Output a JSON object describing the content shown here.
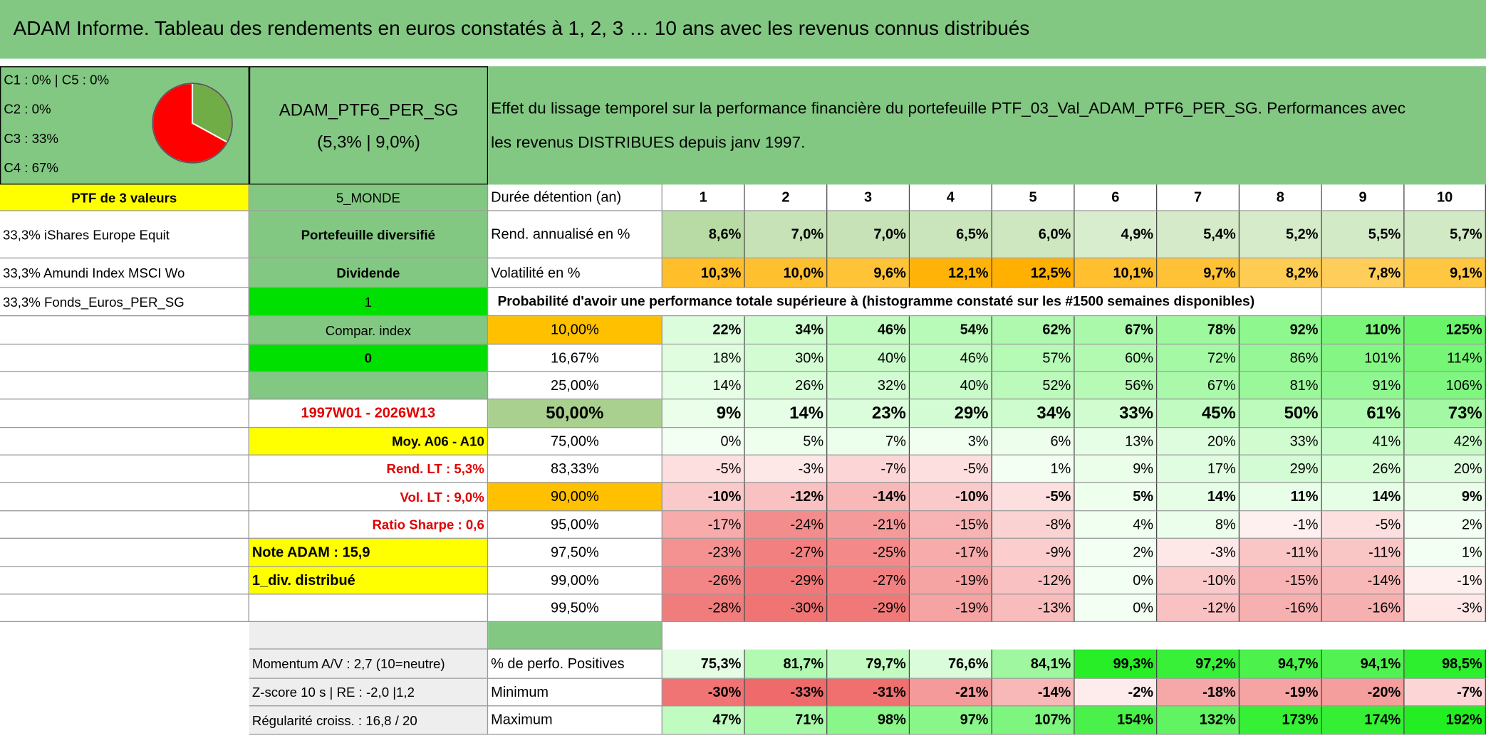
{
  "title": "ADAM Informe. Tableau des rendements en euros constatés à 1, 2, 3 … 10 ans avec les revenus connus distribués",
  "pie": {
    "legend": [
      "C1 : 0% | C5 : 0%",
      "C2 : 0%",
      "C3 : 33%",
      "C4 : 67%"
    ],
    "slices": [
      {
        "value": 33,
        "color": "#70ad47"
      },
      {
        "value": 67,
        "color": "#ff0000"
      }
    ]
  },
  "portfolio": {
    "name": "ADAM_PTF6_PER_SG",
    "stats": "(5,3% | 9,0%)"
  },
  "description": [
    "Effet du lissage temporel sur la performance financière du portefeuille PTF_03_Val_ADAM_PTF6_PER_SG. Performances avec",
    "les revenus DISTRIBUES depuis janv 1997."
  ],
  "table": {
    "rows": [
      {
        "left": "PTF de 3 valeurs",
        "middle": "5_MONDE",
        "label": "Durée détention (an)",
        "values": [
          "1",
          "2",
          "3",
          "4",
          "5",
          "6",
          "7",
          "8",
          "9",
          "10"
        ]
      },
      {
        "left": "33,3% iShares Europe Equit",
        "middle": "Portefeuille diversifié",
        "label": "Rend. annualisé en %",
        "values": [
          "8,6%",
          "7,0%",
          "7,0%",
          "6,5%",
          "6,0%",
          "4,9%",
          "5,4%",
          "5,2%",
          "5,5%",
          "5,7%"
        ]
      },
      {
        "left": "33,3% Amundi Index MSCI Wo",
        "middle": "Dividende",
        "label": "Volatilité en %",
        "values": [
          "10,3%",
          "10,0%",
          "9,6%",
          "12,1%",
          "12,5%",
          "10,1%",
          "9,7%",
          "8,2%",
          "7,8%",
          "9,1%"
        ]
      },
      {
        "left": "33,3% Fonds_Euros_PER_SG",
        "middle": "1",
        "label": "Probabilité d'avoir une performance totale supérieure à (histogramme constaté sur les #1500 semaines disponibles)"
      },
      {
        "middle": "Compar. index",
        "label": "10,00%",
        "values": [
          "22%",
          "34%",
          "46%",
          "54%",
          "62%",
          "67%",
          "78%",
          "92%",
          "110%",
          "125%"
        ]
      },
      {
        "middle": "0",
        "label": "16,67%",
        "values": [
          "18%",
          "30%",
          "40%",
          "46%",
          "57%",
          "60%",
          "72%",
          "86%",
          "101%",
          "114%"
        ]
      },
      {
        "label": "25,00%",
        "values": [
          "14%",
          "26%",
          "32%",
          "40%",
          "52%",
          "56%",
          "67%",
          "81%",
          "91%",
          "106%"
        ]
      },
      {
        "middle": "1997W01 - 2026W13",
        "label": "50,00%",
        "values": [
          "9%",
          "14%",
          "23%",
          "29%",
          "34%",
          "33%",
          "45%",
          "50%",
          "61%",
          "73%"
        ]
      },
      {
        "middle": "Moy. A06 - A10",
        "label": "75,00%",
        "values": [
          "0%",
          "5%",
          "7%",
          "3%",
          "6%",
          "13%",
          "20%",
          "33%",
          "41%",
          "42%"
        ]
      },
      {
        "middle": "Rend. LT : 5,3%",
        "label": "83,33%",
        "values": [
          "-5%",
          "-3%",
          "-7%",
          "-5%",
          "1%",
          "9%",
          "17%",
          "29%",
          "26%",
          "20%"
        ]
      },
      {
        "middle": "Vol. LT : 9,0%",
        "label": "90,00%",
        "values": [
          "-10%",
          "-12%",
          "-14%",
          "-10%",
          "-5%",
          "5%",
          "14%",
          "11%",
          "14%",
          "9%"
        ]
      },
      {
        "middle": "Ratio Sharpe : 0,6",
        "label": "95,00%",
        "values": [
          "-17%",
          "-24%",
          "-21%",
          "-15%",
          "-8%",
          "4%",
          "8%",
          "-1%",
          "-5%",
          "2%"
        ]
      },
      {
        "middle": "Note ADAM : 15,9",
        "label": "97,50%",
        "values": [
          "-23%",
          "-27%",
          "-25%",
          "-17%",
          "-9%",
          "2%",
          "-3%",
          "-11%",
          "-11%",
          "1%"
        ]
      },
      {
        "middle": "1_div. distribué",
        "label": "99,00%",
        "values": [
          "-26%",
          "-29%",
          "-27%",
          "-19%",
          "-12%",
          "0%",
          "-10%",
          "-15%",
          "-14%",
          "-1%"
        ]
      },
      {
        "label": "99,50%",
        "values": [
          "-28%",
          "-30%",
          "-29%",
          "-19%",
          "-13%",
          "0%",
          "-12%",
          "-16%",
          "-16%",
          "-3%"
        ]
      },
      {
        "middle": "Momentum A/V : 2,7 (10=neutre)",
        "label": "% de perfo. Positives",
        "values": [
          "75,3%",
          "81,7%",
          "79,7%",
          "76,6%",
          "84,1%",
          "99,3%",
          "97,2%",
          "94,7%",
          "94,1%",
          "98,5%"
        ]
      },
      {
        "middle": "Z-score 10 s | RE : -2,0 |1,2",
        "label": "Minimum",
        "values": [
          "-30%",
          "-33%",
          "-31%",
          "-21%",
          "-14%",
          "-2%",
          "-18%",
          "-19%",
          "-20%",
          "-7%"
        ]
      },
      {
        "middle": "Régularité croiss. : 16,8 / 20",
        "label": "Maximum",
        "values": [
          "47%",
          "71%",
          "98%",
          "97%",
          "107%",
          "154%",
          "132%",
          "173%",
          "174%",
          "192%"
        ]
      }
    ]
  }
}
